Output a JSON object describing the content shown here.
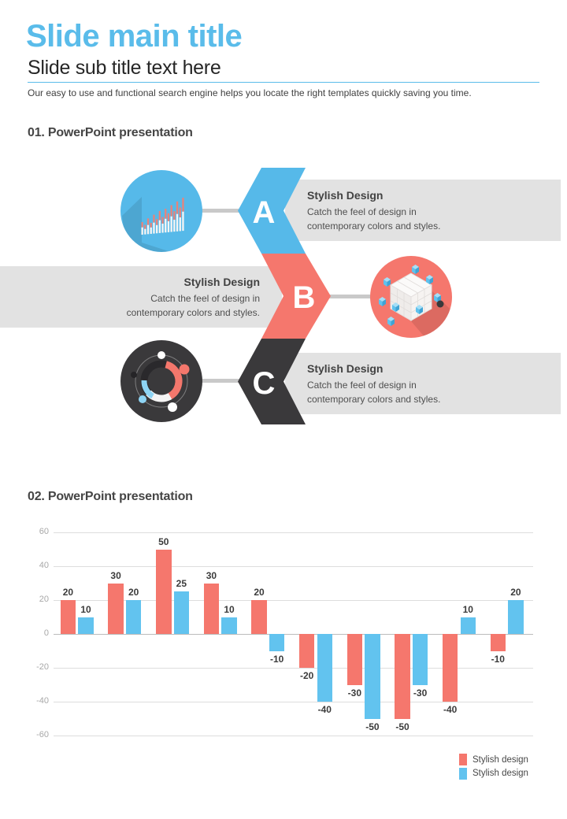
{
  "header": {
    "title": "Slide main title",
    "subtitle": "Slide sub title text here",
    "intro": "Our easy to use and functional search engine  helps you locate the right templates quickly saving you time."
  },
  "section1": {
    "heading": "01. PowerPoint presentation",
    "items": [
      {
        "letter": "A",
        "title": "Stylish Design",
        "line1": "Catch the feel of design in",
        "line2": "contemporary colors and styles.",
        "color": "#56B9E9",
        "icon": "bar-chart-icon",
        "box_side": "right"
      },
      {
        "letter": "B",
        "title": "Stylish Design",
        "line1": "Catch the feel of design in",
        "line2": "contemporary colors and styles.",
        "color": "#F5776D",
        "icon": "cube-icon",
        "box_side": "left"
      },
      {
        "letter": "C",
        "title": "Stylish Design",
        "line1": "Catch the feel of design in",
        "line2": "contemporary colors and styles.",
        "color": "#3A393B",
        "icon": "donut-chart-icon",
        "box_side": "right"
      }
    ]
  },
  "section2": {
    "heading": "02. PowerPoint presentation"
  },
  "chart_data": {
    "type": "bar",
    "series": [
      {
        "name": "Stylish design",
        "color": "#F5776D",
        "values": [
          20,
          30,
          50,
          30,
          20,
          -20,
          -30,
          -50,
          -40,
          -10
        ]
      },
      {
        "name": "Stylish design",
        "color": "#62C3EF",
        "values": [
          10,
          20,
          25,
          10,
          -10,
          -40,
          -50,
          -30,
          10,
          20
        ]
      }
    ],
    "ylim": [
      -60,
      60
    ],
    "yticks": [
      60,
      40,
      20,
      0,
      -20,
      -40,
      -60
    ],
    "grid": true,
    "data_labels": true,
    "legend_position": "bottom-right",
    "title": "",
    "xlabel": "",
    "ylabel": ""
  },
  "colors": {
    "accent_blue": "#5ABCEA",
    "accent_red": "#F5776D",
    "accent_dark": "#3A393B",
    "box_gray": "#E2E2E2",
    "connector_gray": "#C9C9C9",
    "grid_gray": "#DDDDDD",
    "axis_label_gray": "#A8A8A8",
    "value_label_dark": "#3B3B3B"
  }
}
